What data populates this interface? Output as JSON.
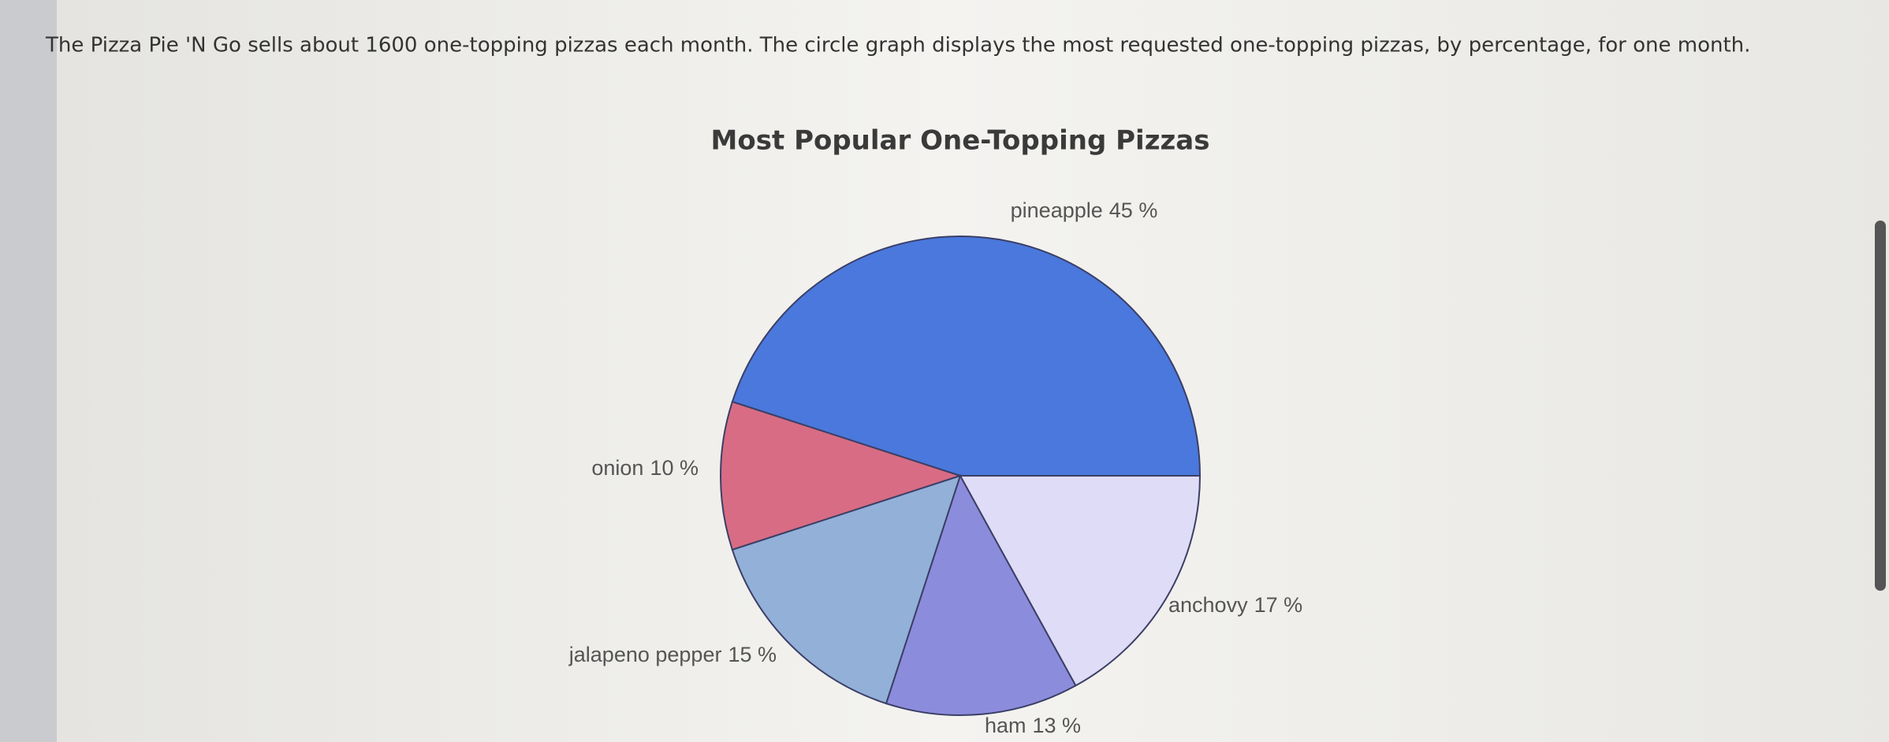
{
  "question": "The Pizza Pie 'N Go sells about 1600 one-topping pizzas each month. The circle graph displays the most requested one-topping pizzas, by percentage, for one month.",
  "chart_data": {
    "type": "pie",
    "title": "Most Popular One-Topping Pizzas",
    "categories": [
      "pineapple",
      "onion",
      "jalapeno pepper",
      "ham",
      "anchovy"
    ],
    "values": [
      45,
      10,
      15,
      13,
      17
    ],
    "value_labels": [
      "45 %",
      "10 %",
      "15 %",
      "13 %",
      "17 %"
    ],
    "colors": [
      "#4a78dc",
      "#d86c84",
      "#92b0d8",
      "#8c8cdc",
      "#dedcf6"
    ]
  }
}
